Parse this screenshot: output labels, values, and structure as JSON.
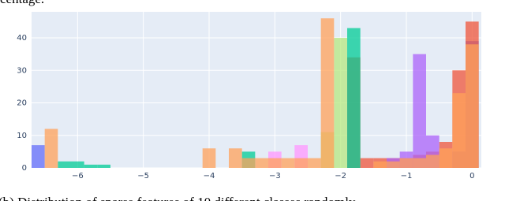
{
  "caption_top": "centage.",
  "caption_bottom": "(b) Distribution of sparse features of 10 different classes randomly",
  "chart_data": {
    "type": "histogram",
    "bins": [
      -6.7,
      -6.5,
      -6.3,
      -6.1,
      -5.9,
      -5.7,
      -5.5,
      -5.3,
      -5.1,
      -4.9,
      -4.7,
      -4.5,
      -4.3,
      -4.1,
      -3.9,
      -3.7,
      -3.5,
      -3.3,
      -3.1,
      -2.9,
      -2.7,
      -2.5,
      -2.3,
      -2.1,
      -1.9,
      -1.7,
      -1.5,
      -1.3,
      -1.1,
      -0.9,
      -0.7,
      -0.5,
      -0.3,
      -0.1,
      0.1
    ],
    "series": [
      {
        "color": "#636efa",
        "values": [
          7,
          0,
          0,
          0,
          0,
          0,
          0,
          0,
          0,
          0,
          0,
          0,
          0,
          0,
          0,
          0,
          0,
          0,
          0,
          0,
          0,
          0,
          0,
          0,
          0,
          0,
          0,
          0,
          0,
          0,
          0,
          0,
          5,
          39
        ]
      },
      {
        "color": "#ef553b",
        "values": [
          0,
          0,
          0,
          0,
          0,
          0,
          0,
          0,
          0,
          0,
          0,
          0,
          0,
          0,
          0,
          0,
          0,
          0,
          0,
          0,
          0,
          0,
          0,
          0,
          34,
          3,
          3,
          3,
          3,
          4,
          5,
          8,
          30,
          45
        ]
      },
      {
        "color": "#b6e880",
        "values": [
          0,
          0,
          0,
          0,
          0,
          0,
          0,
          0,
          0,
          0,
          0,
          0,
          0,
          0,
          0,
          0,
          0,
          0,
          0,
          0,
          0,
          0,
          11,
          40,
          0,
          0,
          0,
          0,
          0,
          0,
          0,
          0,
          0,
          0
        ]
      },
      {
        "color": "#00cc96",
        "values": [
          0,
          0,
          2,
          2,
          1,
          1,
          0,
          0,
          0,
          0,
          0,
          0,
          0,
          0,
          0,
          0,
          5,
          0,
          0,
          0,
          0,
          0,
          0,
          0,
          43,
          0,
          0,
          0,
          0,
          0,
          0,
          0,
          0,
          0
        ]
      },
      {
        "color": "#ab63fa",
        "values": [
          0,
          0,
          0,
          0,
          0,
          0,
          0,
          0,
          0,
          0,
          0,
          0,
          0,
          0,
          0,
          0,
          0,
          0,
          0,
          0,
          0,
          0,
          0,
          0,
          0,
          0,
          0,
          3,
          5,
          35,
          10,
          0,
          0,
          0
        ]
      },
      {
        "color": "#ff97ff",
        "values": [
          0,
          0,
          0,
          0,
          0,
          0,
          0,
          0,
          0,
          0,
          0,
          0,
          0,
          0,
          0,
          0,
          0,
          0,
          5,
          0,
          7,
          0,
          0,
          0,
          0,
          0,
          0,
          0,
          0,
          0,
          0,
          0,
          0,
          0
        ]
      },
      {
        "color": "#ffa15a",
        "values": [
          0,
          12,
          0,
          0,
          0,
          0,
          0,
          0,
          0,
          0,
          0,
          0,
          0,
          6,
          0,
          6,
          3,
          3,
          3,
          3,
          3,
          3,
          46,
          0,
          0,
          0,
          2,
          2,
          3,
          3,
          4,
          6,
          23,
          38
        ]
      }
    ],
    "xlim": [
      -6.7,
      0.14
    ],
    "ylim": [
      0,
      48
    ],
    "xticks": [
      {
        "value": -6,
        "label": "−6"
      },
      {
        "value": -5,
        "label": "−5"
      },
      {
        "value": -4,
        "label": "−4"
      },
      {
        "value": -3,
        "label": "−3"
      },
      {
        "value": -2,
        "label": "−2"
      },
      {
        "value": -1,
        "label": "−1"
      },
      0
    ],
    "yticks": [
      0,
      10,
      20,
      30,
      40
    ],
    "grid": true
  }
}
